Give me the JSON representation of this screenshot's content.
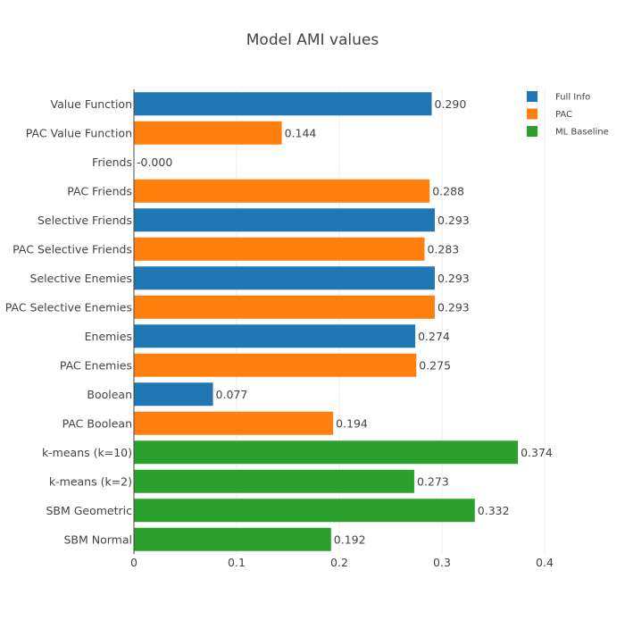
{
  "chart_data": {
    "type": "bar",
    "orientation": "horizontal",
    "title": "Model AMI values",
    "xlabel": "",
    "ylabel": "",
    "xlim": [
      0,
      0.4
    ],
    "x_ticks": [
      {
        "value": 0,
        "label": "0"
      },
      {
        "value": 0.1,
        "label": "0.1"
      },
      {
        "value": 0.2,
        "label": "0.2"
      },
      {
        "value": 0.3,
        "label": "0.3"
      },
      {
        "value": 0.4,
        "label": "0.4"
      }
    ],
    "grid": true,
    "legend_position": "top-right",
    "series": [
      {
        "name": "Full Info",
        "color": "#1f77b4"
      },
      {
        "name": "PAC",
        "color": "#ff7f0e"
      },
      {
        "name": "ML Baseline",
        "color": "#2ca02c"
      }
    ],
    "bars": [
      {
        "category": "Value Function",
        "value": 0.29,
        "label": "0.290",
        "series": "Full Info"
      },
      {
        "category": "PAC Value Function",
        "value": 0.144,
        "label": "0.144",
        "series": "PAC"
      },
      {
        "category": "Friends",
        "value": -0.0,
        "label": "-0.000",
        "series": "Full Info"
      },
      {
        "category": "PAC Friends",
        "value": 0.288,
        "label": "0.288",
        "series": "PAC"
      },
      {
        "category": "Selective Friends",
        "value": 0.293,
        "label": "0.293",
        "series": "Full Info"
      },
      {
        "category": "PAC Selective Friends",
        "value": 0.283,
        "label": "0.283",
        "series": "PAC"
      },
      {
        "category": "Selective Enemies",
        "value": 0.293,
        "label": "0.293",
        "series": "Full Info"
      },
      {
        "category": "PAC Selective Enemies",
        "value": 0.293,
        "label": "0.293",
        "series": "PAC"
      },
      {
        "category": "Enemies",
        "value": 0.274,
        "label": "0.274",
        "series": "Full Info"
      },
      {
        "category": "PAC Enemies",
        "value": 0.275,
        "label": "0.275",
        "series": "PAC"
      },
      {
        "category": "Boolean",
        "value": 0.077,
        "label": "0.077",
        "series": "Full Info"
      },
      {
        "category": "PAC Boolean",
        "value": 0.194,
        "label": "0.194",
        "series": "PAC"
      },
      {
        "category": "k-means (k=10)",
        "value": 0.374,
        "label": "0.374",
        "series": "ML Baseline"
      },
      {
        "category": "k-means (k=2)",
        "value": 0.273,
        "label": "0.273",
        "series": "ML Baseline"
      },
      {
        "category": "SBM Geometric",
        "value": 0.332,
        "label": "0.332",
        "series": "ML Baseline"
      },
      {
        "category": "SBM Normal",
        "value": 0.192,
        "label": "0.192",
        "series": "ML Baseline"
      }
    ]
  }
}
